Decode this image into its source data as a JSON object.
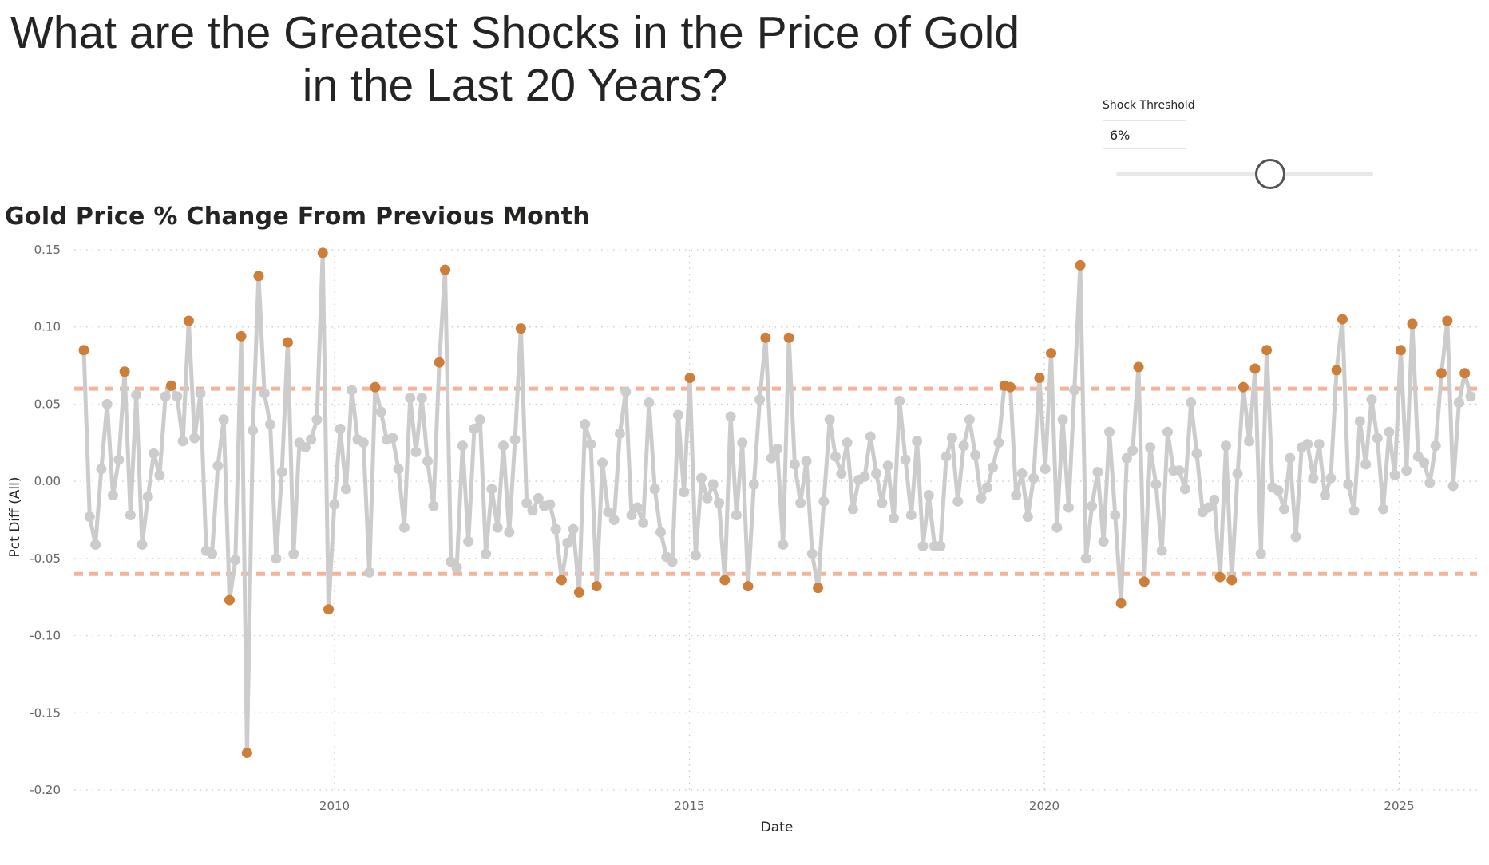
{
  "title": "What are the Greatest Shocks in the Price of Gold in the Last 20 Years?",
  "slicer": {
    "label": "Shock Threshold",
    "value_text": "6%",
    "value": 0.06,
    "min": 0,
    "max": 0.1
  },
  "colors": {
    "line": "#cccccc",
    "normal_point": "#cccccc",
    "shock_point": "#cd7f3a",
    "threshold_line": "#f4b49a",
    "grid": "#c8c8c8"
  },
  "chart_data": {
    "type": "line",
    "title": "Gold Price % Change From Previous Month",
    "xlabel": "Date",
    "ylabel": "Pct Diff (All)",
    "ylim": [
      -0.2,
      0.15
    ],
    "yticks": [
      "0.15",
      "0.10",
      "0.05",
      "0.00",
      "-0.05",
      "-0.10",
      "-0.15",
      "-0.20"
    ],
    "xticks": [
      "2010",
      "2015",
      "2020",
      "2025"
    ],
    "grid": true,
    "threshold_lines": [
      0.06,
      -0.06
    ],
    "x_start": "2006-03",
    "x_step": "month",
    "values": [
      0.085,
      -0.023,
      -0.041,
      0.008,
      0.05,
      -0.009,
      0.014,
      0.071,
      -0.022,
      0.056,
      -0.041,
      -0.01,
      0.018,
      0.004,
      0.055,
      0.062,
      0.055,
      0.026,
      0.104,
      0.028,
      0.057,
      -0.045,
      -0.047,
      0.01,
      0.04,
      -0.077,
      -0.051,
      0.094,
      -0.176,
      0.033,
      0.133,
      0.057,
      0.037,
      -0.05,
      0.006,
      0.09,
      -0.047,
      0.025,
      0.022,
      0.027,
      0.04,
      0.148,
      -0.083,
      -0.015,
      0.034,
      -0.005,
      0.059,
      0.027,
      0.025,
      -0.059,
      0.061,
      0.045,
      0.027,
      0.028,
      0.008,
      -0.03,
      0.054,
      0.019,
      0.054,
      0.013,
      -0.016,
      0.077,
      0.137,
      -0.052,
      -0.056,
      0.023,
      -0.039,
      0.034,
      0.04,
      -0.047,
      -0.005,
      -0.03,
      0.023,
      -0.033,
      0.027,
      0.099,
      -0.014,
      -0.019,
      -0.011,
      -0.016,
      -0.015,
      -0.031,
      -0.064,
      -0.04,
      -0.031,
      -0.072,
      0.037,
      0.024,
      -0.068,
      0.012,
      -0.02,
      -0.025,
      0.031,
      0.058,
      -0.022,
      -0.017,
      -0.027,
      0.051,
      -0.005,
      -0.033,
      -0.049,
      -0.052,
      0.043,
      -0.007,
      0.067,
      -0.048,
      0.002,
      -0.011,
      -0.002,
      -0.014,
      -0.064,
      0.042,
      -0.022,
      0.025,
      -0.068,
      -0.002,
      0.053,
      0.093,
      0.015,
      0.021,
      -0.041,
      0.093,
      0.011,
      -0.014,
      0.013,
      -0.047,
      -0.069,
      -0.013,
      0.04,
      0.016,
      0.005,
      0.025,
      -0.018,
      0.001,
      0.003,
      0.029,
      0.005,
      -0.014,
      0.01,
      -0.024,
      0.052,
      0.014,
      -0.022,
      0.026,
      -0.042,
      -0.009,
      -0.042,
      -0.042,
      0.016,
      0.028,
      -0.013,
      0.023,
      0.04,
      0.017,
      -0.011,
      -0.004,
      0.009,
      0.025,
      0.062,
      0.061,
      -0.009,
      0.005,
      -0.023,
      0.002,
      0.067,
      0.008,
      0.083,
      -0.03,
      0.04,
      -0.017,
      0.059,
      0.14,
      -0.05,
      -0.016,
      0.006,
      -0.039,
      0.032,
      -0.022,
      -0.079,
      0.015,
      0.02,
      0.074,
      -0.065,
      0.022,
      -0.002,
      -0.045,
      0.032,
      0.007,
      0.007,
      -0.005,
      0.051,
      0.018,
      -0.02,
      -0.017,
      -0.012,
      -0.062,
      0.023,
      -0.064,
      0.005,
      0.061,
      0.026,
      0.073,
      -0.047,
      0.085,
      -0.004,
      -0.006,
      -0.018,
      0.015,
      -0.036,
      0.022,
      0.024,
      0.002,
      0.024,
      -0.009,
      0.002,
      0.072,
      0.105,
      -0.002,
      -0.019,
      0.039,
      0.011,
      0.053,
      0.028,
      -0.018,
      0.032,
      0.004,
      0.085,
      0.007,
      0.102,
      0.016,
      0.012,
      -0.001,
      0.023,
      0.07,
      0.104,
      -0.003,
      0.051,
      0.07,
      0.055
    ]
  }
}
